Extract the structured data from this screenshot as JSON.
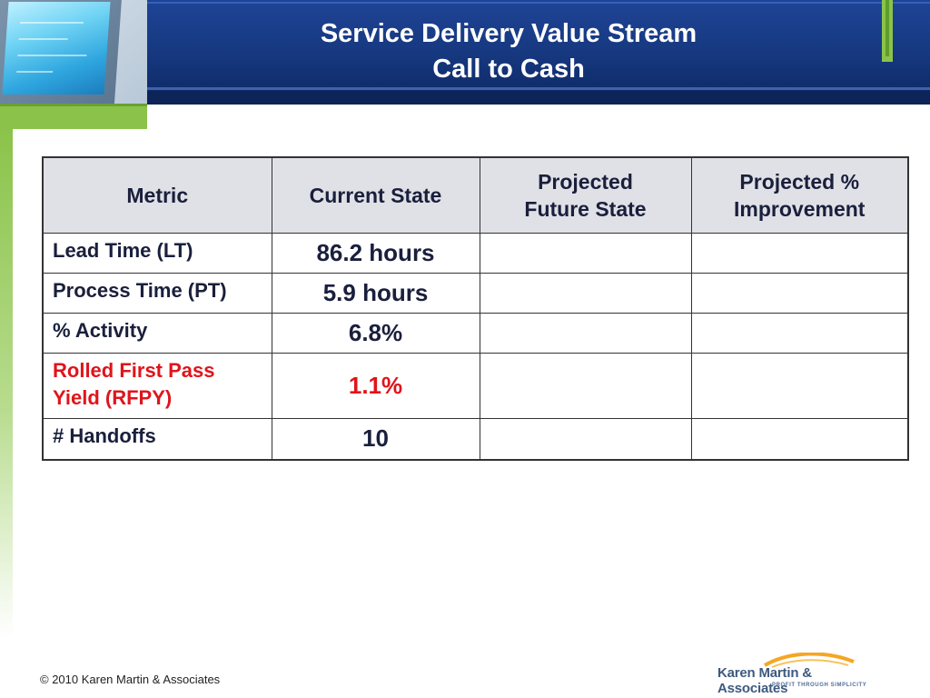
{
  "slide": {
    "title_line1": "Service Delivery Value Stream",
    "title_line2": "Call to Cash"
  },
  "table": {
    "headers": {
      "metric": "Metric",
      "current": "Current State",
      "projected_line1": "Projected",
      "projected_line2": "Future State",
      "improvement_line1": "Projected %",
      "improvement_line2": "Improvement"
    },
    "rows": [
      {
        "metric": "Lead Time (LT)",
        "current": "86.2 hours",
        "projected": "",
        "improvement": ""
      },
      {
        "metric": "Process Time (PT)",
        "current": "5.9 hours",
        "projected": "",
        "improvement": ""
      },
      {
        "metric": "% Activity",
        "current": "6.8%",
        "projected": "",
        "improvement": ""
      },
      {
        "metric_line1": "Rolled First Pass",
        "metric_line2": "Yield (RFPY)",
        "current": "1.1%",
        "projected": "",
        "improvement": ""
      },
      {
        "metric": "# Handoffs",
        "current": "10",
        "projected": "",
        "improvement": ""
      }
    ]
  },
  "footer": {
    "copyright": "© 2010 Karen Martin & Associates",
    "brand_name": "Karen Martin & Associates",
    "brand_tagline": "PROFIT THROUGH SIMPLICITY"
  },
  "colors": {
    "header_blue": "#1f4496",
    "accent_green": "#8bc34a",
    "highlight_red": "#e0141b",
    "header_cell_gray": "#e0e1e6"
  }
}
